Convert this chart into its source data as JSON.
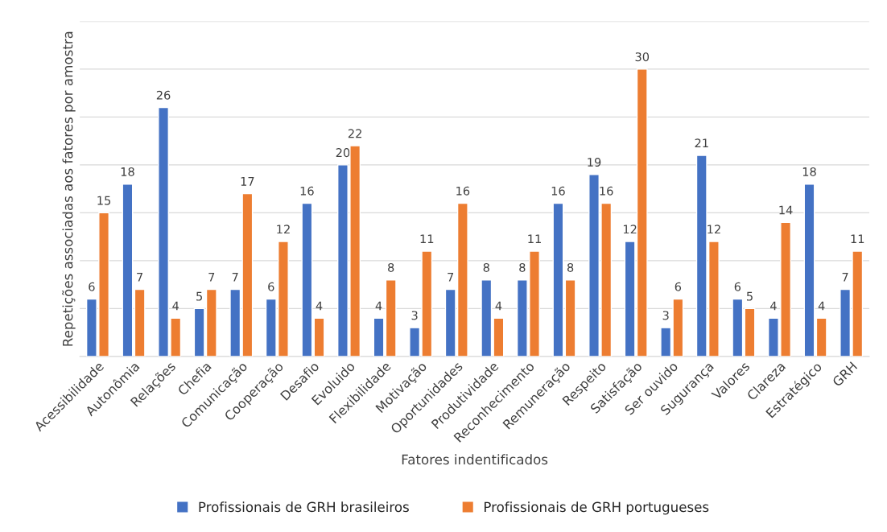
{
  "chart_data": {
    "type": "bar",
    "xlabel": "Fatores indentificados",
    "ylabel": "Repetições associadas aos fatores por amostra",
    "categories": [
      "Acessibilidade",
      "Autonômia",
      "Relações",
      "Chefia",
      "Comunicação",
      "Cooperação",
      "Desafio",
      "Evoluido",
      "Flexibilidade",
      "Motivação",
      "Oportunidades",
      "Produtividade",
      "Reconhecimento",
      "Remuneração",
      "Respeito",
      "Satisfação",
      "Ser ouvido",
      "Sugurança",
      "Valores",
      "Clareza",
      "Estratégico",
      "GRH"
    ],
    "series": [
      {
        "name": "Profissionais de GRH brasileiros",
        "color": "#4472c4",
        "values": [
          6,
          18,
          26,
          5,
          7,
          6,
          16,
          20,
          4,
          3,
          7,
          8,
          8,
          16,
          19,
          12,
          3,
          21,
          6,
          4,
          18,
          7
        ]
      },
      {
        "name": "Profissionais de GRH portugueses",
        "color": "#ed7d31",
        "values": [
          15,
          7,
          4,
          7,
          17,
          12,
          4,
          22,
          8,
          11,
          16,
          4,
          11,
          8,
          16,
          30,
          6,
          12,
          5,
          14,
          4,
          11
        ]
      }
    ],
    "ylim": [
      0,
      35
    ],
    "yticks": [
      {
        "value": 0,
        "label": null
      },
      {
        "value": 5,
        "label": null
      },
      {
        "value": 10,
        "label": null
      },
      {
        "value": 15,
        "label": null
      },
      {
        "value": 20,
        "label": null
      },
      {
        "value": 25,
        "label": null
      },
      {
        "value": 30,
        "label": null
      },
      {
        "value": 35,
        "label": null
      }
    ],
    "grid": "y",
    "legend": "bottom",
    "data_labels": true,
    "tick_labels": "x"
  }
}
